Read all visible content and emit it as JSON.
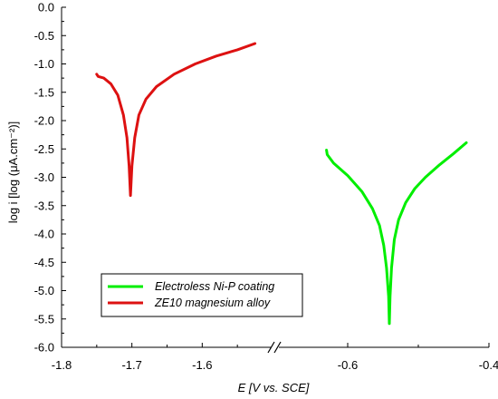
{
  "chart_data": {
    "type": "line",
    "xlabel": "E [V vs. SCE]",
    "ylabel": "log i [log (μA.cm⁻²)]",
    "ylim": [
      -6.0,
      0.0
    ],
    "y_ticks": [
      "0.0",
      "-0.5",
      "-1.0",
      "-1.5",
      "-2.0",
      "-2.5",
      "-3.0",
      "-3.5",
      "-4.0",
      "-4.5",
      "-5.0",
      "-5.5",
      "-6.0"
    ],
    "x_axis_break": true,
    "x_segments": [
      {
        "range": [
          -1.8,
          -1.5
        ],
        "ticks": [
          "-1.8",
          "-1.7",
          "-1.6"
        ]
      },
      {
        "range": [
          -0.7,
          -0.4
        ],
        "ticks": [
          "-0.6",
          "-0.4"
        ]
      }
    ],
    "grid": false,
    "legend_position": "bottom-left",
    "series": [
      {
        "name": "Electroless Ni-P coating",
        "color": "#00ee00",
        "points": [
          [
            -0.63,
            -2.52
          ],
          [
            -0.629,
            -2.6
          ],
          [
            -0.62,
            -2.75
          ],
          [
            -0.6,
            -2.97
          ],
          [
            -0.58,
            -3.25
          ],
          [
            -0.565,
            -3.55
          ],
          [
            -0.555,
            -3.85
          ],
          [
            -0.549,
            -4.2
          ],
          [
            -0.545,
            -4.6
          ],
          [
            -0.542,
            -5.1
          ],
          [
            -0.541,
            -5.58
          ],
          [
            -0.54,
            -5.1
          ],
          [
            -0.538,
            -4.6
          ],
          [
            -0.534,
            -4.1
          ],
          [
            -0.528,
            -3.75
          ],
          [
            -0.518,
            -3.45
          ],
          [
            -0.505,
            -3.2
          ],
          [
            -0.49,
            -3.0
          ],
          [
            -0.47,
            -2.78
          ],
          [
            -0.45,
            -2.58
          ],
          [
            -0.432,
            -2.39
          ]
        ]
      },
      {
        "name": "ZE10 magnesium alloy",
        "color": "#dd1111",
        "points": [
          [
            -1.75,
            -1.18
          ],
          [
            -1.748,
            -1.22
          ],
          [
            -1.74,
            -1.25
          ],
          [
            -1.73,
            -1.35
          ],
          [
            -1.72,
            -1.55
          ],
          [
            -1.712,
            -1.9
          ],
          [
            -1.707,
            -2.3
          ],
          [
            -1.704,
            -2.8
          ],
          [
            -1.702,
            -3.32
          ],
          [
            -1.7,
            -2.8
          ],
          [
            -1.696,
            -2.3
          ],
          [
            -1.69,
            -1.9
          ],
          [
            -1.68,
            -1.62
          ],
          [
            -1.665,
            -1.4
          ],
          [
            -1.64,
            -1.18
          ],
          [
            -1.61,
            -1.0
          ],
          [
            -1.58,
            -0.86
          ],
          [
            -1.55,
            -0.75
          ],
          [
            -1.525,
            -0.64
          ]
        ]
      }
    ]
  }
}
